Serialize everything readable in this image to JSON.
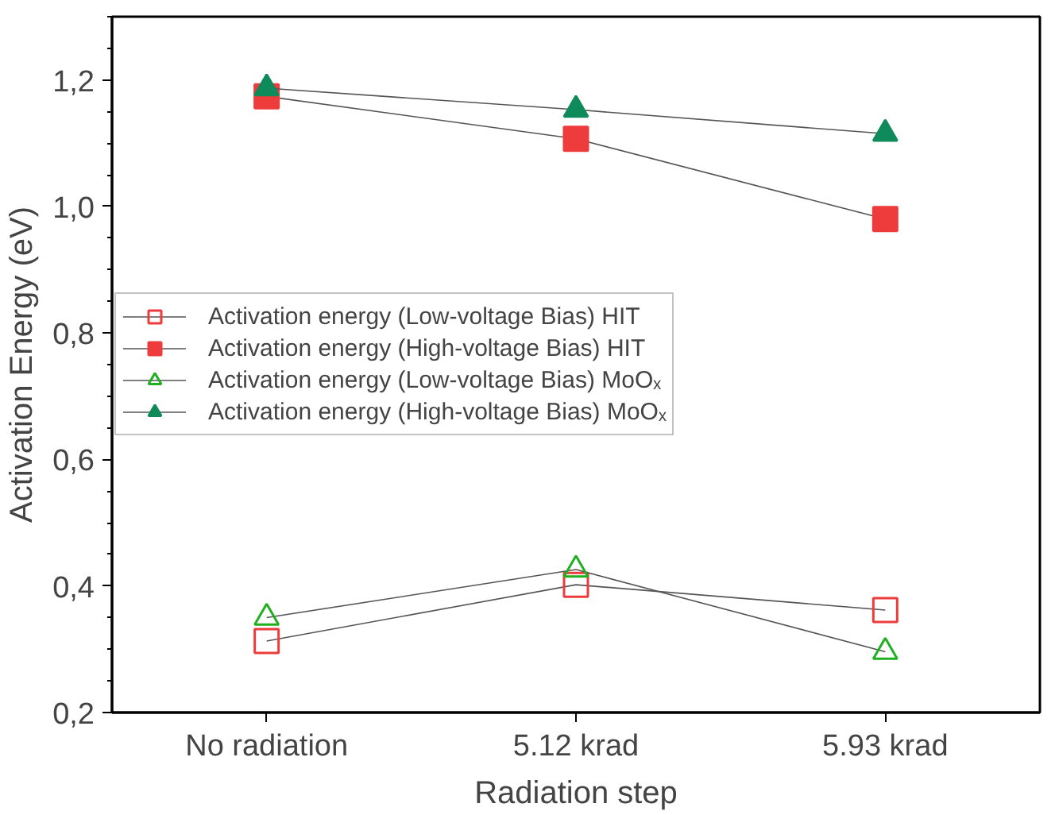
{
  "chart_data": {
    "type": "line",
    "xlabel": "Radiation step",
    "ylabel": "Activation Energy (eV)",
    "categories": [
      "No radiation",
      "5.12 krad",
      "5.93 krad"
    ],
    "series": [
      {
        "name": "Activation energy (Low-voltage Bias) HIT",
        "color": "#ee3b3b",
        "marker": "square_open",
        "values": [
          0.313,
          0.402,
          0.362
        ]
      },
      {
        "name": "Activation energy (High-voltage Bias) HIT",
        "color": "#ee3b3b",
        "marker": "square",
        "values": [
          1.174,
          1.107,
          0.98
        ]
      },
      {
        "name": "Activation energy (Low-voltage Bias) MoOₓ",
        "color": "#1fb01f",
        "marker": "triangle_open",
        "values": [
          0.35,
          0.426,
          0.296
        ]
      },
      {
        "name": "Activation energy (High-voltage Bias) MoOₓ",
        "color": "#0f8a5a",
        "marker": "triangle",
        "values": [
          1.187,
          1.153,
          1.115
        ]
      }
    ],
    "ylim": [
      0.2,
      1.3
    ],
    "yticks": [
      {
        "value": 0.2,
        "label": "0,2"
      },
      {
        "value": 0.4,
        "label": "0,4"
      },
      {
        "value": 0.6,
        "label": "0,6"
      },
      {
        "value": 0.8,
        "label": "0,8"
      },
      {
        "value": 1.0,
        "label": "1,0"
      },
      {
        "value": 1.2,
        "label": "1,2"
      }
    ],
    "legend": "left",
    "grid": false
  }
}
